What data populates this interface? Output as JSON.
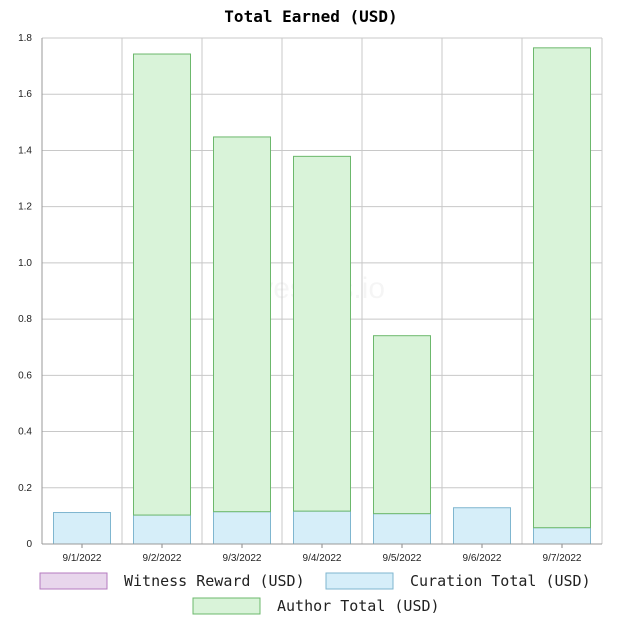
{
  "watermark": "hivestats.io",
  "chart_data": {
    "type": "bar",
    "stacked": true,
    "title": "Total Earned (USD)",
    "categories": [
      "9/1/2022",
      "9/2/2022",
      "9/3/2022",
      "9/4/2022",
      "9/5/2022",
      "9/6/2022",
      "9/7/2022"
    ],
    "ylim": [
      0,
      1.8
    ],
    "yticks": [
      "0",
      "0.2",
      "0.4",
      "0.6",
      "0.8",
      "1.0",
      "1.2",
      "1.4",
      "1.6",
      "1.8"
    ],
    "grid": true,
    "legend_position": "bottom",
    "series": [
      {
        "name": "Witness Reward (USD)",
        "values": [
          0,
          0,
          0,
          0,
          0,
          0,
          0
        ],
        "fill": "#e8d6ec",
        "stroke": "#b57bbf"
      },
      {
        "name": "Curation Total (USD)",
        "values": [
          0.112,
          0.103,
          0.115,
          0.117,
          0.108,
          0.129,
          0.058
        ],
        "fill": "#d6eef9",
        "stroke": "#7fb6cf"
      },
      {
        "name": "Author Total (USD)",
        "values": [
          0,
          1.64,
          1.333,
          1.262,
          0.633,
          0,
          1.707
        ],
        "fill": "#d9f3d9",
        "stroke": "#6cb86c"
      }
    ]
  }
}
